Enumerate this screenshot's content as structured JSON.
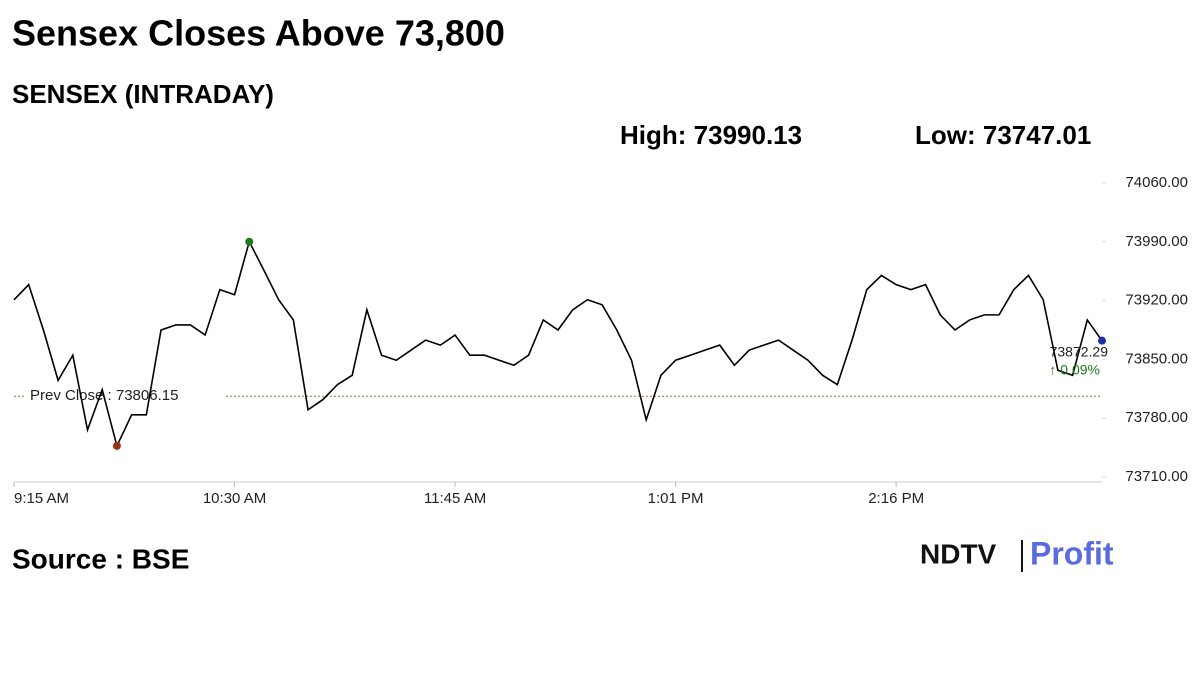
{
  "chart_data": {
    "type": "line",
    "title": "Sensex Closes Above 73,800",
    "subtitle": "SENSEX (INTRADAY)",
    "high_label": "High: 73990.13",
    "low_label": "Low: 73747.01",
    "prev_close": 73806.15,
    "prev_close_label": "Prev Close : 73806.15",
    "change_label": "↑ 0.09%",
    "source": "Source : BSE",
    "logo": [
      "NDTV",
      "Profit"
    ],
    "categories": [
      "9:15 AM",
      null,
      null,
      null,
      null,
      null,
      null,
      null,
      null,
      null,
      null,
      null,
      null,
      null,
      null,
      "10:30 AM",
      null,
      null,
      null,
      null,
      null,
      null,
      null,
      null,
      null,
      null,
      null,
      null,
      null,
      null,
      "11:45 AM",
      null,
      null,
      null,
      null,
      null,
      null,
      null,
      null,
      null,
      null,
      null,
      null,
      null,
      null,
      "1:01 PM",
      null,
      null,
      null,
      null,
      null,
      null,
      null,
      null,
      null,
      null,
      null,
      null,
      null,
      null,
      "2:16 PM",
      null,
      null,
      null,
      null,
      null,
      null,
      null,
      null,
      null,
      null,
      null,
      null,
      null,
      null
    ],
    "series": [
      {
        "name": "SENSEX",
        "color": "#000000",
        "values": [
          73921,
          73939,
          73885,
          73825,
          73855,
          73766,
          73814,
          73747.01,
          73784,
          73784,
          73885,
          73891,
          73891,
          73879,
          73933,
          73927,
          73990.13,
          73956,
          73921,
          73897,
          73790,
          73802,
          73820,
          73831,
          73909,
          73855,
          73849,
          73861,
          73873,
          73867,
          73879,
          73855,
          73855,
          73849,
          73843,
          73855,
          73897,
          73885,
          73909,
          73921,
          73915,
          73885,
          73849,
          73778,
          73831,
          73849,
          73855,
          73861,
          73867,
          73843,
          73861,
          73867,
          73873,
          73861,
          73849,
          73831,
          73820,
          73873,
          73933,
          73950,
          73939,
          73933,
          73939,
          73903,
          73885,
          73897,
          73903,
          73903,
          73933,
          73950,
          73921,
          73837,
          73831,
          73897,
          73872.29
        ]
      }
    ],
    "ylim": [
      73710,
      74060
    ],
    "yticks": [
      {
        "value": 73710,
        "label": "73710.00"
      },
      {
        "value": 73780,
        "label": "73780.00"
      },
      {
        "value": 73850,
        "label": "73850.00"
      },
      {
        "value": 73920,
        "label": "73920.00"
      },
      {
        "value": 73990,
        "label": "73990.00"
      },
      {
        "value": 74060,
        "label": "74060.00"
      }
    ],
    "high_color": "#1a7a1a",
    "low_color": "#a0301a",
    "last_color": "#1f2fa8",
    "prev_close_color": "#8a7a3a"
  }
}
